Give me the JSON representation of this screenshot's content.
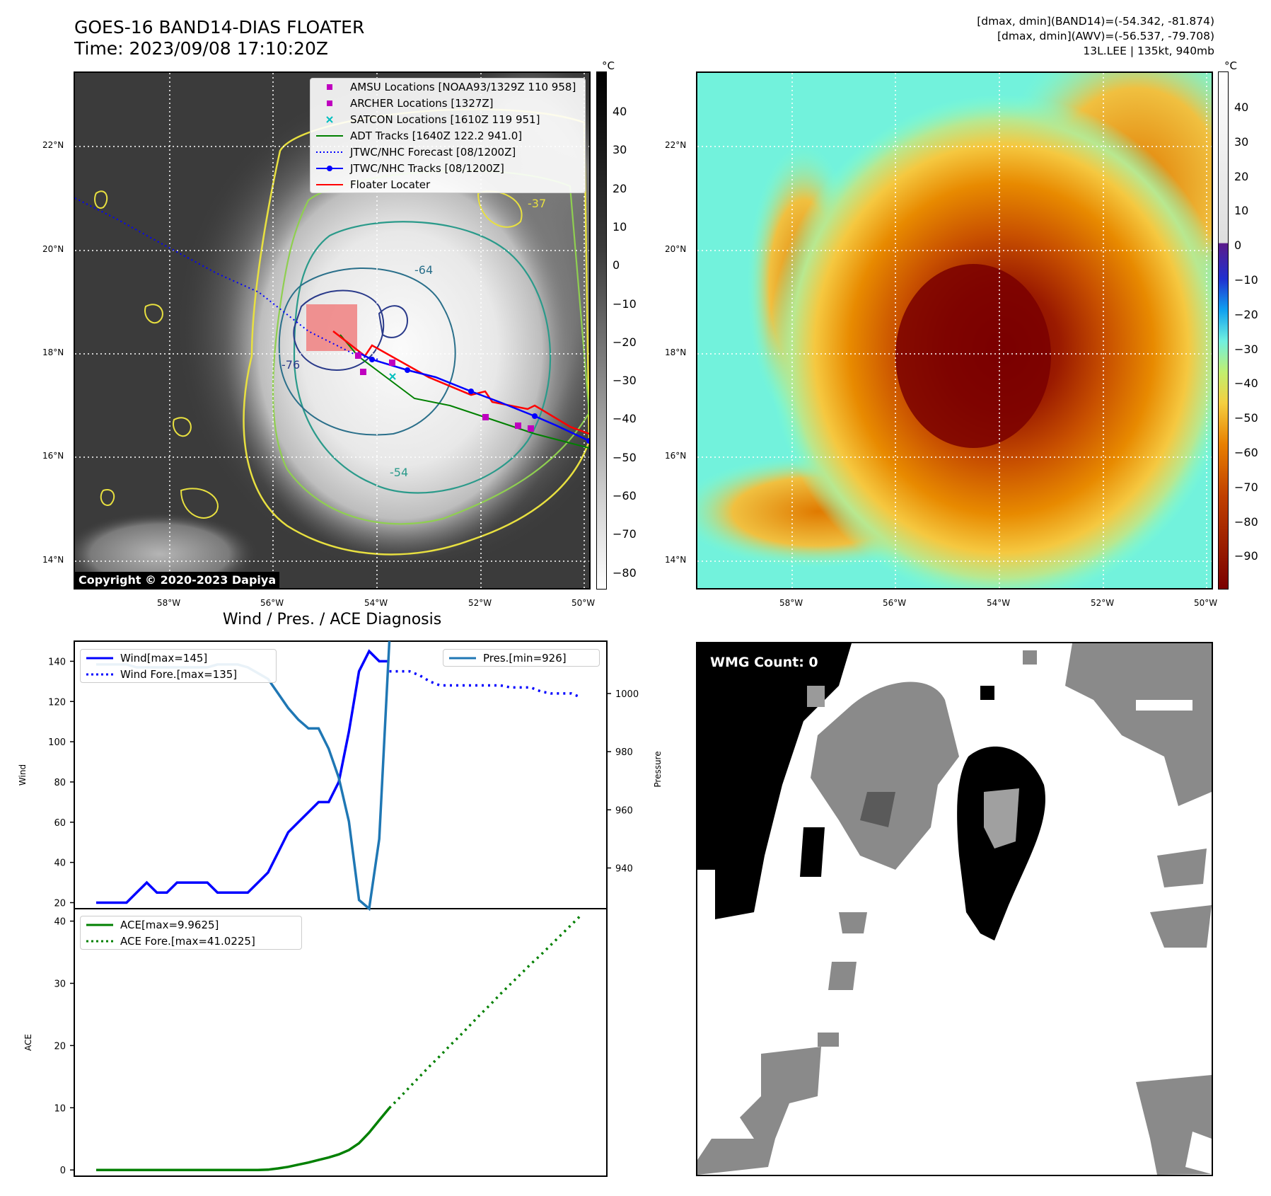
{
  "header": {
    "title_line1": "GOES-16 BAND14-DIAS FLOATER",
    "title_line2": "Time: 2023/09/08 17:10:20Z",
    "right_line1": "[dmax, dmin](BAND14)=(-54.342, -81.874)",
    "right_line2": "[dmax, dmin](AWV)=(-56.537, -79.708)",
    "right_line3": "13L.LEE | 135kt, 940mb"
  },
  "map": {
    "lat_ticks": [
      "22°N",
      "20°N",
      "18°N",
      "16°N",
      "14°N"
    ],
    "lon_ticks": [
      "58°W",
      "56°W",
      "54°W",
      "52°W",
      "50°W"
    ],
    "copyright": "Copyright © 2020-2023 Dapiya",
    "contour_labels": [
      "-76",
      "-64",
      "-54",
      "-37"
    ],
    "legend": [
      {
        "label": "AMSU Locations [NOAA93/1329Z 110 958]",
        "color": "#bf00bf",
        "marker": "square"
      },
      {
        "label": "ARCHER Locations [1327Z]",
        "color": "#bf00bf",
        "marker": "square"
      },
      {
        "label": "SATCON Locations [1610Z 119 951]",
        "color": "#00bfbf",
        "marker": "x"
      },
      {
        "label": "ADT Tracks [1640Z 122.2 941.0]",
        "color": "#008000",
        "marker": "line"
      },
      {
        "label": "JTWC/NHC Forecast [08/1200Z]",
        "color": "#0000ff",
        "marker": "dotted"
      },
      {
        "label": "JTWC/NHC Tracks [08/1200Z]",
        "color": "#0000ff",
        "marker": "line-dot"
      },
      {
        "label": "Floater Locater",
        "color": "#ff0000",
        "marker": "line"
      }
    ],
    "colorbar_unit": "°C",
    "colorbar_ticks_left": [
      "40",
      "30",
      "20",
      "10",
      "0",
      "−10",
      "−20",
      "−30",
      "−40",
      "−50",
      "−60",
      "−70",
      "−80"
    ],
    "colorbar_ticks_right": [
      "40",
      "30",
      "20",
      "10",
      "0",
      "−10",
      "−20",
      "−30",
      "−40",
      "−50",
      "−60",
      "−70",
      "−80",
      "−90"
    ]
  },
  "diag": {
    "title": "Wind / Pres. / ACE Diagnosis",
    "wind_ylabel": "Wind",
    "pres_ylabel": "Pressure",
    "ace_ylabel": "ACE",
    "wind_legend": "Wind[max=145]",
    "wind_fore_legend": "Wind Fore.[max=135]",
    "pres_legend": "Pres.[min=926]",
    "ace_legend": "ACE[max=9.9625]",
    "ace_fore_legend": "ACE Fore.[max=41.0225]",
    "wmg_label": "WMG Count: 0"
  },
  "chart_data": [
    {
      "type": "line",
      "title": "Wind / Pres. / ACE Diagnosis",
      "ylabel": "Wind",
      "ylim": [
        17,
        150
      ],
      "yticks": [
        20,
        40,
        60,
        80,
        100,
        120,
        140
      ],
      "x_index": [
        0,
        1,
        2,
        3,
        4,
        5,
        6,
        7,
        8,
        9,
        10,
        11,
        12,
        13,
        14,
        15,
        16,
        17,
        18,
        19,
        20,
        21,
        22,
        23,
        24,
        25,
        26,
        27,
        28,
        29,
        30,
        31,
        32,
        33,
        34,
        35,
        36,
        37,
        38,
        39,
        40,
        41,
        42,
        43,
        44,
        45,
        46,
        47,
        48
      ],
      "series": [
        {
          "name": "Wind[max=145]",
          "color": "#0000ff",
          "style": "solid",
          "x": [
            0,
            1,
            2,
            3,
            4,
            5,
            6,
            7,
            8,
            9,
            10,
            11,
            12,
            13,
            14,
            15,
            16,
            17,
            18,
            19,
            20,
            21,
            22,
            23,
            24,
            25,
            26,
            27,
            28,
            29
          ],
          "values": [
            20,
            20,
            20,
            20,
            25,
            30,
            25,
            25,
            30,
            30,
            30,
            30,
            25,
            25,
            25,
            25,
            30,
            35,
            45,
            55,
            60,
            65,
            70,
            70,
            80,
            105,
            135,
            145,
            140,
            140
          ]
        },
        {
          "name": "Wind Fore.[max=135]",
          "color": "#0000ff",
          "style": "dotted",
          "x": [
            29,
            30,
            31,
            32,
            33,
            34,
            35,
            36,
            37,
            38,
            39,
            40,
            41,
            42,
            43,
            44,
            45,
            46,
            47,
            48
          ],
          "values": [
            135,
            135,
            135,
            133,
            130,
            128,
            128,
            128,
            128,
            128,
            128,
            128,
            127,
            127,
            127,
            125,
            124,
            124,
            124,
            122
          ]
        }
      ]
    },
    {
      "type": "line",
      "ylabel": "Pressure",
      "ylim": [
        926,
        1018
      ],
      "yticks": [
        940,
        960,
        980,
        1000
      ],
      "series": [
        {
          "name": "Pres.[min=926]",
          "color": "#1f77b4",
          "style": "solid",
          "x": [
            0,
            1,
            2,
            3,
            4,
            5,
            6,
            7,
            8,
            9,
            10,
            11,
            12,
            13,
            14,
            15,
            16,
            17,
            18,
            19,
            20,
            21,
            22,
            23,
            24,
            25,
            26,
            27,
            28,
            29
          ],
          "values": [
            1010,
            1010,
            1010,
            1010,
            1009,
            1009,
            1009,
            1009,
            1009,
            1009,
            1009,
            1009,
            1010,
            1010,
            1010,
            1009,
            1007,
            1005,
            1000,
            995,
            991,
            988,
            988,
            981,
            971,
            956,
            929,
            926,
            950,
            1018
          ]
        }
      ]
    },
    {
      "type": "line",
      "ylabel": "ACE",
      "ylim": [
        -1,
        42
      ],
      "yticks": [
        0,
        10,
        20,
        30,
        40
      ],
      "series": [
        {
          "name": "ACE[max=9.9625]",
          "color": "#008000",
          "style": "solid",
          "x": [
            0,
            1,
            2,
            3,
            4,
            5,
            6,
            7,
            8,
            9,
            10,
            11,
            12,
            13,
            14,
            15,
            16,
            17,
            18,
            19,
            20,
            21,
            22,
            23,
            24,
            25,
            26,
            27,
            28,
            29
          ],
          "values": [
            0,
            0,
            0,
            0,
            0,
            0,
            0,
            0,
            0,
            0,
            0,
            0,
            0,
            0,
            0,
            0,
            0,
            0.05,
            0.25,
            0.5,
            0.85,
            1.2,
            1.6,
            2.0,
            2.5,
            3.2,
            4.3,
            6.0,
            8.0,
            9.9625
          ]
        },
        {
          "name": "ACE Fore.[max=41.0225]",
          "color": "#008000",
          "style": "dotted",
          "x": [
            29,
            30,
            31,
            32,
            33,
            34,
            35,
            36,
            37,
            38,
            39,
            40,
            41,
            42,
            43,
            44,
            45,
            46,
            47,
            48
          ],
          "values": [
            9.9625,
            11.6,
            13.3,
            15.0,
            16.7,
            18.3,
            20.0,
            21.6,
            23.3,
            25.0,
            26.6,
            28.3,
            29.9,
            31.5,
            33.1,
            34.6,
            36.2,
            37.8,
            39.4,
            41.0225
          ]
        }
      ]
    }
  ]
}
